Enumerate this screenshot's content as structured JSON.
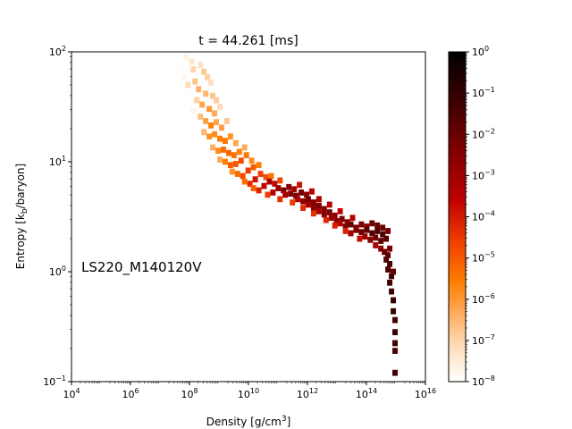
{
  "chart_data": {
    "type": "heatmap",
    "title": "t = 44.261 [ms]",
    "xlabel": {
      "main": "Density [g/cm",
      "sup": "3",
      "tail": "]"
    },
    "ylabel": {
      "main": "Entropy [k",
      "sub": "b",
      "tail": "/baryon]"
    },
    "annotation": "LS220_M140120V",
    "x_scale": "log",
    "y_scale": "log",
    "xlim": [
      10000,
      10000000000000000
    ],
    "ylim": [
      0.1,
      100
    ],
    "x_ticks": [
      {
        "value": 10000,
        "base": "10",
        "exp": "4"
      },
      {
        "value": 1000000,
        "base": "10",
        "exp": "6"
      },
      {
        "value": 100000000,
        "base": "10",
        "exp": "8"
      },
      {
        "value": 10000000000,
        "base": "10",
        "exp": "10"
      },
      {
        "value": 1000000000000,
        "base": "10",
        "exp": "12"
      },
      {
        "value": 100000000000000,
        "base": "10",
        "exp": "14"
      },
      {
        "value": 10000000000000000,
        "base": "10",
        "exp": "16"
      }
    ],
    "y_ticks": [
      {
        "value": 0.1,
        "base": "10",
        "exp": "−1"
      },
      {
        "value": 1,
        "base": "10",
        "exp": "0"
      },
      {
        "value": 10,
        "base": "10",
        "exp": "1"
      },
      {
        "value": 100,
        "base": "10",
        "exp": "2"
      }
    ],
    "colorbar": {
      "scale": "log",
      "range": [
        1e-08,
        1
      ],
      "colormap": "gist_heat_r",
      "ticks": [
        {
          "value": 1,
          "base": "10",
          "exp": "0"
        },
        {
          "value": 0.1,
          "base": "10",
          "exp": "−1"
        },
        {
          "value": 0.01,
          "base": "10",
          "exp": "−2"
        },
        {
          "value": 0.001,
          "base": "10",
          "exp": "−3"
        },
        {
          "value": 0.0001,
          "base": "10",
          "exp": "−4"
        },
        {
          "value": 1e-05,
          "base": "10",
          "exp": "−5"
        },
        {
          "value": 1e-06,
          "base": "10",
          "exp": "−6"
        },
        {
          "value": 1e-07,
          "base": "10",
          "exp": "−7"
        },
        {
          "value": 1e-08,
          "base": "10",
          "exp": "−8"
        }
      ]
    },
    "heatmap_cells": {
      "fields": [
        "log10_density",
        "log10_entropy",
        "log10_mass_fraction"
      ],
      "cells": [
        [
          7.65,
          1.97,
          -8
        ],
        [
          7.77,
          1.92,
          -8
        ],
        [
          7.71,
          1.86,
          -7.9
        ],
        [
          7.89,
          1.95,
          -7.6
        ],
        [
          8.07,
          1.91,
          -7.4
        ],
        [
          8.13,
          1.84,
          -7
        ],
        [
          8.37,
          1.88,
          -7.2
        ],
        [
          8.49,
          1.82,
          -6.8
        ],
        [
          8.61,
          1.77,
          -6.9
        ],
        [
          8.73,
          1.72,
          -7.2
        ],
        [
          7.83,
          1.76,
          -7.8
        ],
        [
          7.95,
          1.7,
          -7.1
        ],
        [
          8.19,
          1.73,
          -6.7
        ],
        [
          8.31,
          1.66,
          -6.4
        ],
        [
          8.55,
          1.62,
          -6.5
        ],
        [
          8.79,
          1.6,
          -6.7
        ],
        [
          8.91,
          1.56,
          -6.9
        ],
        [
          8.01,
          1.61,
          -7.9
        ],
        [
          8.25,
          1.56,
          -6.9
        ],
        [
          8.43,
          1.52,
          -6.2
        ],
        [
          8.67,
          1.48,
          -6
        ],
        [
          8.85,
          1.44,
          -6.3
        ],
        [
          9.03,
          1.5,
          -7.1
        ],
        [
          8.13,
          1.46,
          -7.7
        ],
        [
          8.37,
          1.41,
          -6.6
        ],
        [
          8.55,
          1.37,
          -6.1
        ],
        [
          8.73,
          1.33,
          -5.6
        ],
        [
          8.91,
          1.36,
          -6.2
        ],
        [
          9.09,
          1.31,
          -6.1
        ],
        [
          9.27,
          1.37,
          -6.8
        ],
        [
          8.49,
          1.27,
          -6.5
        ],
        [
          8.67,
          1.23,
          -5.9
        ],
        [
          8.85,
          1.25,
          -5.8
        ],
        [
          9.03,
          1.21,
          -5.6
        ],
        [
          9.21,
          1.19,
          -5.5
        ],
        [
          9.39,
          1.23,
          -5.9
        ],
        [
          9.57,
          1.17,
          -6.2
        ],
        [
          8.79,
          1.13,
          -6.4
        ],
        [
          8.97,
          1.1,
          -5.8
        ],
        [
          9.15,
          1.11,
          -5.3
        ],
        [
          9.33,
          1.08,
          -5.2
        ],
        [
          9.51,
          1.06,
          -5.4
        ],
        [
          9.69,
          1.09,
          -5.6
        ],
        [
          9.87,
          1.13,
          -6.3
        ],
        [
          9.03,
          1.02,
          -6.3
        ],
        [
          9.21,
          1.0,
          -5.6
        ],
        [
          9.39,
          0.97,
          -5.1
        ],
        [
          9.57,
          0.98,
          -5
        ],
        [
          9.75,
          1.01,
          -4.8
        ],
        [
          9.93,
          1.06,
          -5.5
        ],
        [
          10.11,
          1.01,
          -5.8
        ],
        [
          9.45,
          0.91,
          -5.9
        ],
        [
          9.63,
          0.89,
          -5.3
        ],
        [
          9.81,
          0.87,
          -4.8
        ],
        [
          9.99,
          0.92,
          -4.6
        ],
        [
          10.17,
          0.95,
          -5.1
        ],
        [
          10.35,
          0.97,
          -5.6
        ],
        [
          9.87,
          0.82,
          -5.4
        ],
        [
          10.05,
          0.8,
          -4.3
        ],
        [
          10.23,
          0.84,
          -3.9
        ],
        [
          10.41,
          0.89,
          -4.6
        ],
        [
          10.59,
          0.86,
          -4.9
        ],
        [
          10.77,
          0.87,
          -5.4
        ],
        [
          10.17,
          0.76,
          -5.1
        ],
        [
          10.35,
          0.74,
          -4.2
        ],
        [
          10.53,
          0.78,
          -3.6
        ],
        [
          10.71,
          0.82,
          -3.2
        ],
        [
          10.89,
          0.8,
          -3.7
        ],
        [
          11.07,
          0.83,
          -4.7
        ],
        [
          10.65,
          0.7,
          -4.6
        ],
        [
          10.83,
          0.72,
          -3.5
        ],
        [
          11.01,
          0.76,
          -2.8
        ],
        [
          11.19,
          0.74,
          -2.4
        ],
        [
          11.37,
          0.77,
          -2.5
        ],
        [
          11.55,
          0.75,
          -3.1
        ],
        [
          11.73,
          0.79,
          -3.9
        ],
        [
          11.07,
          0.66,
          -4.4
        ],
        [
          11.25,
          0.7,
          -3.1
        ],
        [
          11.43,
          0.71,
          -2.5
        ],
        [
          11.61,
          0.69,
          -2.2
        ],
        [
          11.79,
          0.72,
          -2.2
        ],
        [
          11.97,
          0.7,
          -2.6
        ],
        [
          12.15,
          0.73,
          -3.5
        ],
        [
          11.49,
          0.63,
          -4.6
        ],
        [
          11.67,
          0.66,
          -3.3
        ],
        [
          11.85,
          0.64,
          -2.6
        ],
        [
          12.03,
          0.66,
          -2.2
        ],
        [
          12.21,
          0.63,
          -2.4
        ],
        [
          12.39,
          0.66,
          -3.2
        ],
        [
          11.85,
          0.58,
          -4.3
        ],
        [
          12.03,
          0.61,
          -3.2
        ],
        [
          12.21,
          0.58,
          -2.6
        ],
        [
          12.39,
          0.6,
          -2.3
        ],
        [
          12.57,
          0.57,
          -2.5
        ],
        [
          12.75,
          0.61,
          -3.4
        ],
        [
          12.21,
          0.53,
          -4.4
        ],
        [
          12.39,
          0.55,
          -3.1
        ],
        [
          12.57,
          0.52,
          -2.5
        ],
        [
          12.75,
          0.54,
          -2.3
        ],
        [
          12.93,
          0.51,
          -2.7
        ],
        [
          13.11,
          0.55,
          -3.6
        ],
        [
          12.63,
          0.47,
          -4.2
        ],
        [
          12.81,
          0.49,
          -3
        ],
        [
          12.99,
          0.46,
          -2.5
        ],
        [
          13.17,
          0.48,
          -2.3
        ],
        [
          13.35,
          0.45,
          -2.5
        ],
        [
          13.53,
          0.49,
          -3.4
        ],
        [
          12.93,
          0.42,
          -4.1
        ],
        [
          13.11,
          0.44,
          -3.3
        ],
        [
          13.29,
          0.41,
          -2.4
        ],
        [
          13.47,
          0.43,
          -2.1
        ],
        [
          13.65,
          0.4,
          -2.2
        ],
        [
          13.83,
          0.43,
          -2.4
        ],
        [
          14.01,
          0.41,
          -2.5
        ],
        [
          14.19,
          0.44,
          -2.2
        ],
        [
          14.37,
          0.42,
          -1.9
        ],
        [
          14.55,
          0.4,
          -2
        ],
        [
          13.29,
          0.37,
          -4.2
        ],
        [
          13.47,
          0.35,
          -3.1
        ],
        [
          13.65,
          0.38,
          -2.4
        ],
        [
          13.83,
          0.36,
          -2
        ],
        [
          14.01,
          0.38,
          -1.8
        ],
        [
          14.19,
          0.35,
          -1.7
        ],
        [
          14.37,
          0.37,
          -1.6
        ],
        [
          14.55,
          0.34,
          -1.5
        ],
        [
          14.73,
          0.37,
          -2.3
        ],
        [
          13.77,
          0.3,
          -3.8
        ],
        [
          13.95,
          0.32,
          -2.9
        ],
        [
          14.13,
          0.29,
          -2.5
        ],
        [
          14.31,
          0.31,
          -2.1
        ],
        [
          14.49,
          0.28,
          -1.8
        ],
        [
          14.67,
          0.3,
          -1.6
        ],
        [
          14.31,
          0.24,
          -3.3
        ],
        [
          14.49,
          0.21,
          -2.6
        ],
        [
          14.61,
          0.18,
          -2.1
        ],
        [
          14.73,
          0.15,
          -1.7
        ],
        [
          14.79,
          0.21,
          -2.2
        ],
        [
          14.67,
          0.11,
          -1.6
        ],
        [
          14.79,
          0.07,
          -1.3
        ],
        [
          14.73,
          0.02,
          -1.5
        ],
        [
          14.85,
          -0.04,
          -1.1
        ],
        [
          14.79,
          -0.1,
          -1.3
        ],
        [
          14.91,
          0.0,
          -1.9
        ],
        [
          14.85,
          -0.18,
          -1.2
        ],
        [
          14.91,
          -0.26,
          -1.1
        ],
        [
          14.91,
          -0.36,
          -1.2
        ],
        [
          14.97,
          -0.44,
          -1.4
        ],
        [
          14.97,
          -0.55,
          -1.2
        ],
        [
          14.97,
          -0.65,
          -1.3
        ],
        [
          14.97,
          -0.72,
          -1.5
        ],
        [
          14.97,
          -0.92,
          -1.4
        ]
      ]
    }
  }
}
